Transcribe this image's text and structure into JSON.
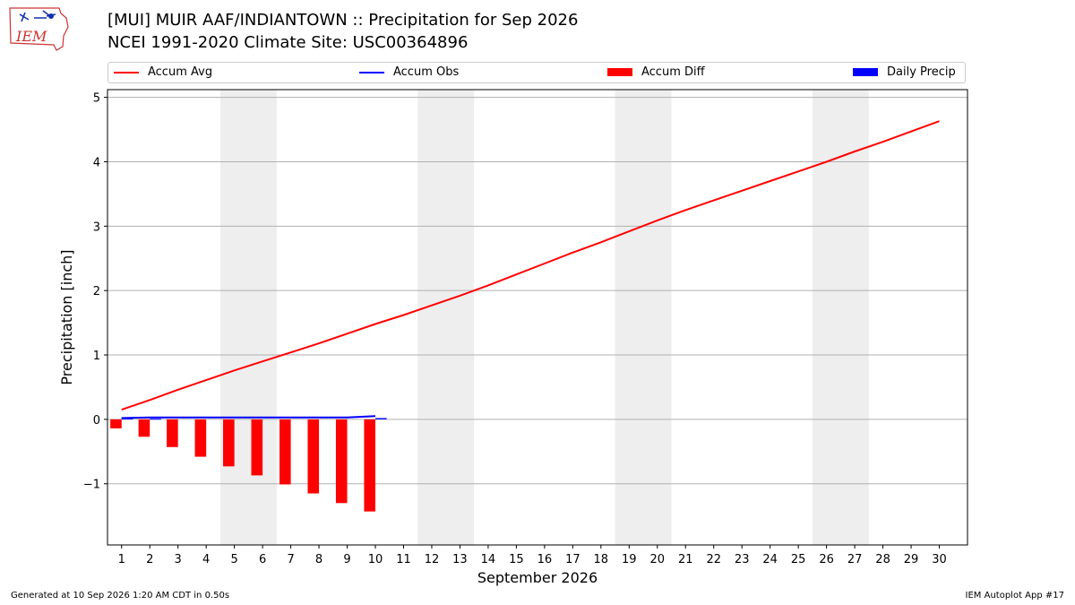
{
  "header": {
    "title_line1": "[MUI] MUIR AAF/INDIANTOWN :: Precipitation for Sep 2026",
    "title_line2": "NCEI 1991-2020 Climate Site: USC00364896",
    "logo_text": "IEM"
  },
  "legend": {
    "items": [
      {
        "label": "Accum Avg",
        "color": "#ff0000",
        "kind": "line"
      },
      {
        "label": "Accum Obs",
        "color": "#0000ff",
        "kind": "line"
      },
      {
        "label": "Accum Diff",
        "color": "#ff0000",
        "kind": "box"
      },
      {
        "label": "Daily Precip",
        "color": "#0000ff",
        "kind": "box"
      }
    ]
  },
  "footer": {
    "left": "Generated at 10 Sep 2026 1:20 AM CDT in 0.50s",
    "right": "IEM Autoplot App #17"
  },
  "chart_data": {
    "type": "bar",
    "title": "[MUI] MUIR AAF/INDIANTOWN :: Precipitation for Sep 2026",
    "subtitle": "NCEI 1991-2020 Climate Site: USC00364896",
    "xlabel": "September 2026",
    "ylabel": "Precipitation [inch]",
    "xlim": [
      0.5,
      31
    ],
    "ylim": [
      -1.95,
      5.12
    ],
    "x_ticks": [
      1,
      2,
      3,
      4,
      5,
      6,
      7,
      8,
      9,
      10,
      11,
      12,
      13,
      14,
      15,
      16,
      17,
      18,
      19,
      20,
      21,
      22,
      23,
      24,
      25,
      26,
      27,
      28,
      29,
      30
    ],
    "y_ticks": [
      -1,
      0,
      1,
      2,
      3,
      4,
      5
    ],
    "y_tick_labels": [
      "−1",
      "0",
      "1",
      "2",
      "3",
      "4",
      "5"
    ],
    "grid": "horizontal",
    "legend_position": "top",
    "weekend_shading": [
      [
        4.5,
        6.5
      ],
      [
        11.5,
        13.5
      ],
      [
        18.5,
        20.5
      ],
      [
        25.5,
        27.5
      ]
    ],
    "accum_avg": {
      "name": "Accum Avg",
      "color": "#ff0000",
      "x": [
        1,
        2,
        3,
        4,
        5,
        6,
        7,
        8,
        9,
        10,
        11,
        12,
        13,
        14,
        15,
        16,
        17,
        18,
        19,
        20,
        21,
        22,
        23,
        24,
        25,
        26,
        27,
        28,
        29,
        30
      ],
      "values": [
        0.15,
        0.3,
        0.46,
        0.61,
        0.76,
        0.9,
        1.04,
        1.18,
        1.33,
        1.48,
        1.62,
        1.77,
        1.92,
        2.08,
        2.25,
        2.42,
        2.59,
        2.75,
        2.92,
        3.09,
        3.25,
        3.4,
        3.55,
        3.7,
        3.85,
        4.0,
        4.16,
        4.31,
        4.47,
        4.63
      ]
    },
    "accum_obs": {
      "name": "Accum Obs",
      "color": "#0000ff",
      "x": [
        1,
        2,
        3,
        4,
        5,
        6,
        7,
        8,
        9,
        10
      ],
      "values": [
        0.02,
        0.03,
        0.03,
        0.03,
        0.03,
        0.03,
        0.03,
        0.03,
        0.03,
        0.05
      ]
    },
    "accum_diff": {
      "name": "Accum Diff",
      "color": "#ff0000",
      "x": [
        1,
        2,
        3,
        4,
        5,
        6,
        7,
        8,
        9,
        10
      ],
      "values": [
        -0.14,
        -0.27,
        -0.43,
        -0.58,
        -0.73,
        -0.87,
        -1.01,
        -1.15,
        -1.3,
        -1.43
      ]
    },
    "daily_precip": {
      "name": "Daily Precip",
      "color": "#0000ff",
      "x": [
        1,
        2,
        3,
        4,
        5,
        6,
        7,
        8,
        9,
        10
      ],
      "values": [
        0.02,
        0.01,
        0.0,
        0.0,
        0.0,
        0.0,
        0.0,
        0.0,
        0.0,
        0.02
      ]
    }
  }
}
